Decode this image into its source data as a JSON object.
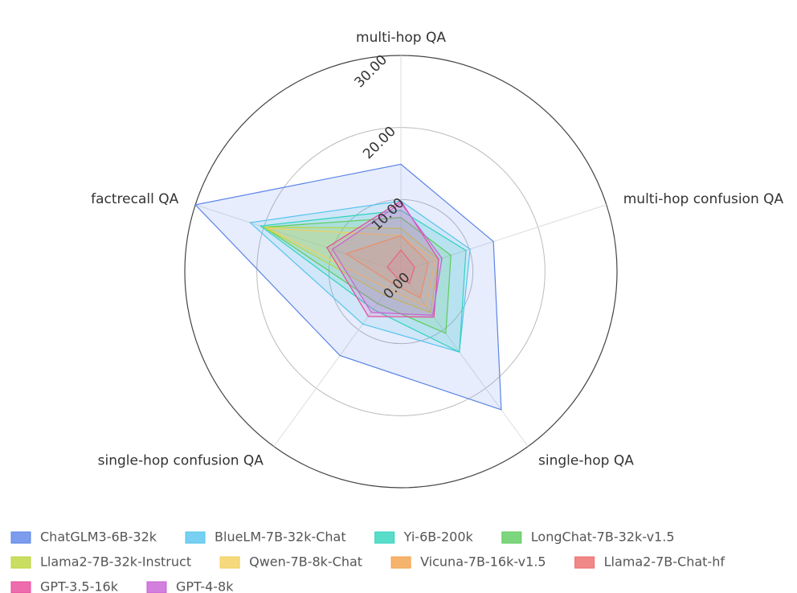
{
  "chart_data": {
    "type": "radar",
    "axes": [
      "multi-hop QA",
      "multi-hop confusion QA",
      "single-hop QA",
      "single-hop confusion QA",
      "factrecall QA"
    ],
    "rlim": [
      0,
      30
    ],
    "rticks": [
      {
        "value": 0,
        "label": "0.00"
      },
      {
        "value": 10,
        "label": "10.00"
      },
      {
        "value": 20,
        "label": "20.00"
      },
      {
        "value": 30,
        "label": "30.00"
      }
    ],
    "series": [
      {
        "name": "ChatGLM3-6B-32k",
        "color": "#5b84e8",
        "values": [
          14.9,
          13.5,
          23.7,
          14.4,
          30
        ]
      },
      {
        "name": "BlueLM-7B-32k-Chat",
        "color": "#55c4ee",
        "values": [
          9.8,
          10.1,
          13.8,
          9.0,
          22
        ]
      },
      {
        "name": "Yi-6B-200k",
        "color": "#2fd3bd",
        "values": [
          8.5,
          9.5,
          13.8,
          6.5,
          20.5
        ]
      },
      {
        "name": "LongChat-7B-32k-v1.5",
        "color": "#5ccc5c",
        "values": [
          7.5,
          7.3,
          10.6,
          5.5,
          20
        ]
      },
      {
        "name": "Llama2-7B-32k-Instruct",
        "color": "#bcd63a",
        "values": [
          6,
          5.5,
          7,
          4,
          20
        ]
      },
      {
        "name": "Qwen-7B-8k-Chat",
        "color": "#f2cf5b",
        "values": [
          5,
          5,
          6,
          3,
          19.5
        ]
      },
      {
        "name": "Vicuna-7B-16k-v1.5",
        "color": "#f2a14a",
        "values": [
          5,
          4,
          4.5,
          2,
          8
        ]
      },
      {
        "name": "Llama2-7B-Chat-hf",
        "color": "#ee6a6a",
        "values": [
          3,
          2,
          2,
          1,
          2
        ]
      },
      {
        "name": "GPT-3.5-16k",
        "color": "#e8479a",
        "values": [
          9.8,
          5.5,
          7.8,
          7.7,
          10.8
        ]
      },
      {
        "name": "GPT-4-8k",
        "color": "#c85fd6",
        "values": [
          9.5,
          6,
          7.5,
          7,
          10
        ]
      }
    ]
  }
}
